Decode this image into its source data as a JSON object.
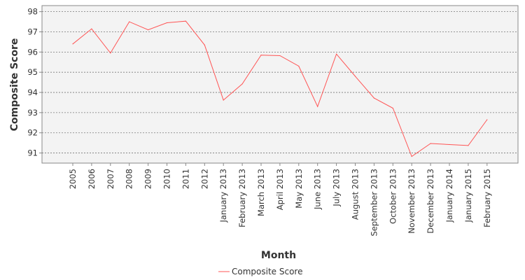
{
  "chart_data": {
    "type": "line",
    "categories": [
      "2005",
      "2006",
      "2007",
      "2008",
      "2009",
      "2010",
      "2011",
      "2012",
      "January 2013",
      "February 2013",
      "March 2013",
      "April 2013",
      "May 2013",
      "June 2013",
      "July 2013",
      "August 2013",
      "September 2013",
      "October 2013",
      "November 2013",
      "December 2013",
      "January 2014",
      "January 2015",
      "February 2015"
    ],
    "series": [
      {
        "name": "Composite Score",
        "color": "#ff5555",
        "values": [
          96.4,
          97.15,
          95.95,
          97.5,
          97.1,
          97.45,
          97.53,
          96.35,
          93.62,
          94.42,
          95.85,
          95.82,
          95.3,
          93.3,
          95.9,
          94.8,
          93.72,
          93.22,
          90.83,
          91.47,
          91.42,
          91.37,
          92.65
        ]
      }
    ],
    "xlabel": "Month",
    "ylabel": "Composite Score",
    "yticks": [
      91,
      92,
      93,
      94,
      95,
      96,
      97,
      98
    ],
    "ylim": [
      90.5,
      98.3
    ],
    "grid": true,
    "legend": "bottom"
  }
}
